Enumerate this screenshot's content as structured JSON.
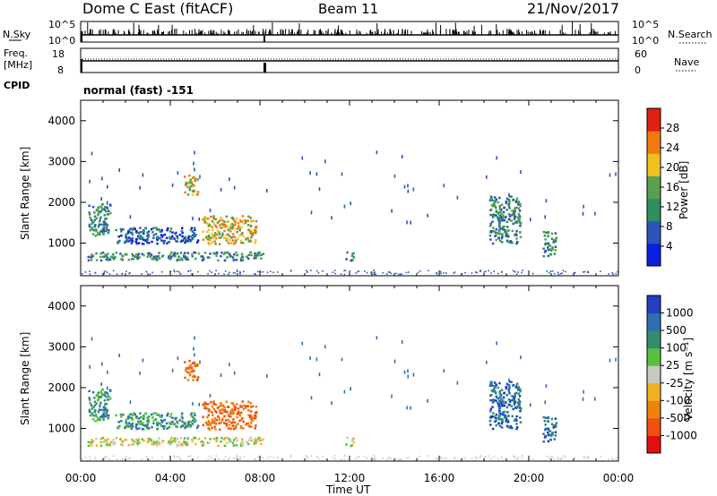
{
  "header": {
    "radar": "Dome C East (fitACF)",
    "beam": "Beam 11",
    "date": "21/Nov/2017"
  },
  "top_panels": {
    "nsky_label": "N.Sky",
    "nsky_ticks": [
      "10^5",
      "10^0"
    ],
    "nsearch_label": "N.Search",
    "nsearch_ticks": [
      "10^5",
      "10^0"
    ],
    "freq_label_1": "Freq.",
    "freq_label_2": "[MHz]",
    "freq_ticks": [
      "18",
      "8"
    ],
    "nave_label": "Nave",
    "nave_ticks": [
      "60",
      "0"
    ],
    "cpid_label": "CPID",
    "cpid_text": "normal (fast) -151"
  },
  "chart_data": [
    {
      "type": "heatmap",
      "name": "power",
      "ylabel": "Slant Range [km]",
      "ylim": [
        200,
        4500
      ],
      "yticks": [
        "1000",
        "2000",
        "3000",
        "4000"
      ],
      "xlim": [
        0,
        24
      ],
      "colorbar": {
        "label": "Power [dB]",
        "ticks": [
          "4",
          "8",
          "12",
          "16",
          "20",
          "24",
          "28"
        ],
        "colors": [
          "#0b1fe0",
          "#2c55b8",
          "#2f8f5e",
          "#5aa050",
          "#f0c020",
          "#f07a10",
          "#e02010"
        ]
      },
      "echo_regions": [
        {
          "t0": 0.3,
          "t1": 8.1,
          "r0": 600,
          "r1": 800,
          "level": "mid"
        },
        {
          "t0": 0.3,
          "t1": 1.3,
          "r0": 1200,
          "r1": 2000,
          "level": "mid"
        },
        {
          "t0": 1.5,
          "t1": 5.2,
          "r0": 1000,
          "r1": 1400,
          "level": "low"
        },
        {
          "t0": 4.6,
          "t1": 5.2,
          "r0": 2200,
          "r1": 2700,
          "level": "high"
        },
        {
          "t0": 5.4,
          "t1": 7.8,
          "r0": 1000,
          "r1": 1700,
          "level": "high"
        },
        {
          "t0": 11.8,
          "t1": 12.2,
          "r0": 600,
          "r1": 800,
          "level": "mid"
        },
        {
          "t0": 18.2,
          "t1": 19.6,
          "r0": 1000,
          "r1": 2200,
          "level": "mid"
        },
        {
          "t0": 20.6,
          "t1": 21.2,
          "r0": 700,
          "r1": 1300,
          "level": "mid"
        }
      ]
    },
    {
      "type": "heatmap",
      "name": "velocity",
      "ylabel": "Slant Range [km]",
      "xlabel": "Time UT",
      "ylim": [
        200,
        4500
      ],
      "yticks": [
        "1000",
        "2000",
        "3000",
        "4000"
      ],
      "xlim": [
        0,
        24
      ],
      "xticks": [
        "00:00",
        "04:00",
        "08:00",
        "12:00",
        "16:00",
        "20:00",
        "00:00"
      ],
      "colorbar": {
        "label": "Velocity [m s^-1]",
        "ticks": [
          "1000",
          "500",
          "100",
          "25",
          "-25",
          "-100",
          "-500",
          "-1000"
        ],
        "colors": [
          "#2040c0",
          "#2f6fb0",
          "#2f8f6e",
          "#58c040",
          "#c8c8c0",
          "#f0b020",
          "#f08010",
          "#f05010",
          "#e01010"
        ]
      }
    }
  ]
}
